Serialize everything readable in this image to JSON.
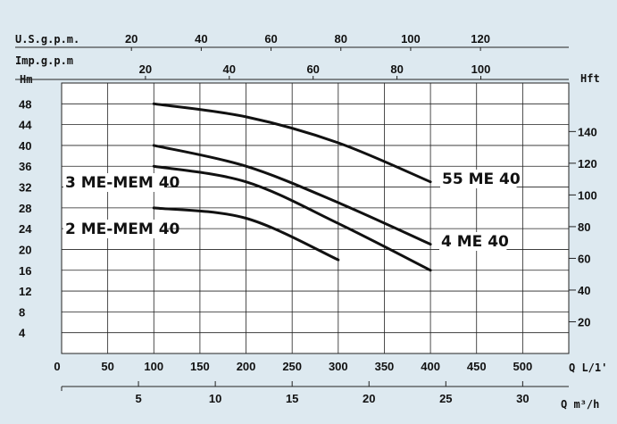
{
  "chart_data": {
    "type": "line",
    "title": "",
    "x_axis": {
      "label": "Q L/1'",
      "ticks": [
        0,
        50,
        100,
        150,
        200,
        250,
        300,
        350,
        400,
        450,
        500
      ],
      "range": [
        0,
        550
      ]
    },
    "y_axis_left": {
      "unit": "Hm",
      "ticks": [
        4,
        8,
        12,
        16,
        20,
        24,
        28,
        32,
        36,
        40,
        44,
        48
      ],
      "range": [
        0,
        52
      ]
    },
    "y_axis_right": {
      "unit": "Hft",
      "ticks": [
        20,
        40,
        60,
        80,
        100,
        120,
        140
      ]
    },
    "top_axis_usgpm": {
      "label": "U.S.g.p.m.",
      "ticks": [
        20,
        40,
        60,
        80,
        100,
        120
      ]
    },
    "top_axis_impgpm": {
      "label": "Imp.g.p.m",
      "ticks": [
        20,
        40,
        60,
        80,
        100
      ]
    },
    "bottom_axis_m3h": {
      "label": "Q m³/h",
      "ticks": [
        5,
        10,
        15,
        20,
        25,
        30
      ]
    },
    "grid": true,
    "series": [
      {
        "name": "55 ME 40",
        "x": [
          100,
          200,
          300,
          400
        ],
        "y": [
          48,
          45.5,
          40.5,
          33
        ]
      },
      {
        "name": "4 ME 40",
        "x": [
          100,
          200,
          300,
          400
        ],
        "y": [
          40,
          36,
          29,
          21
        ]
      },
      {
        "name": "3 ME-MEM 40",
        "x": [
          100,
          200,
          300,
          400
        ],
        "y": [
          36,
          33,
          25,
          16
        ]
      },
      {
        "name": "2 ME-MEM 40",
        "x": [
          100,
          200,
          300
        ],
        "y": [
          28,
          26,
          18
        ]
      }
    ]
  }
}
